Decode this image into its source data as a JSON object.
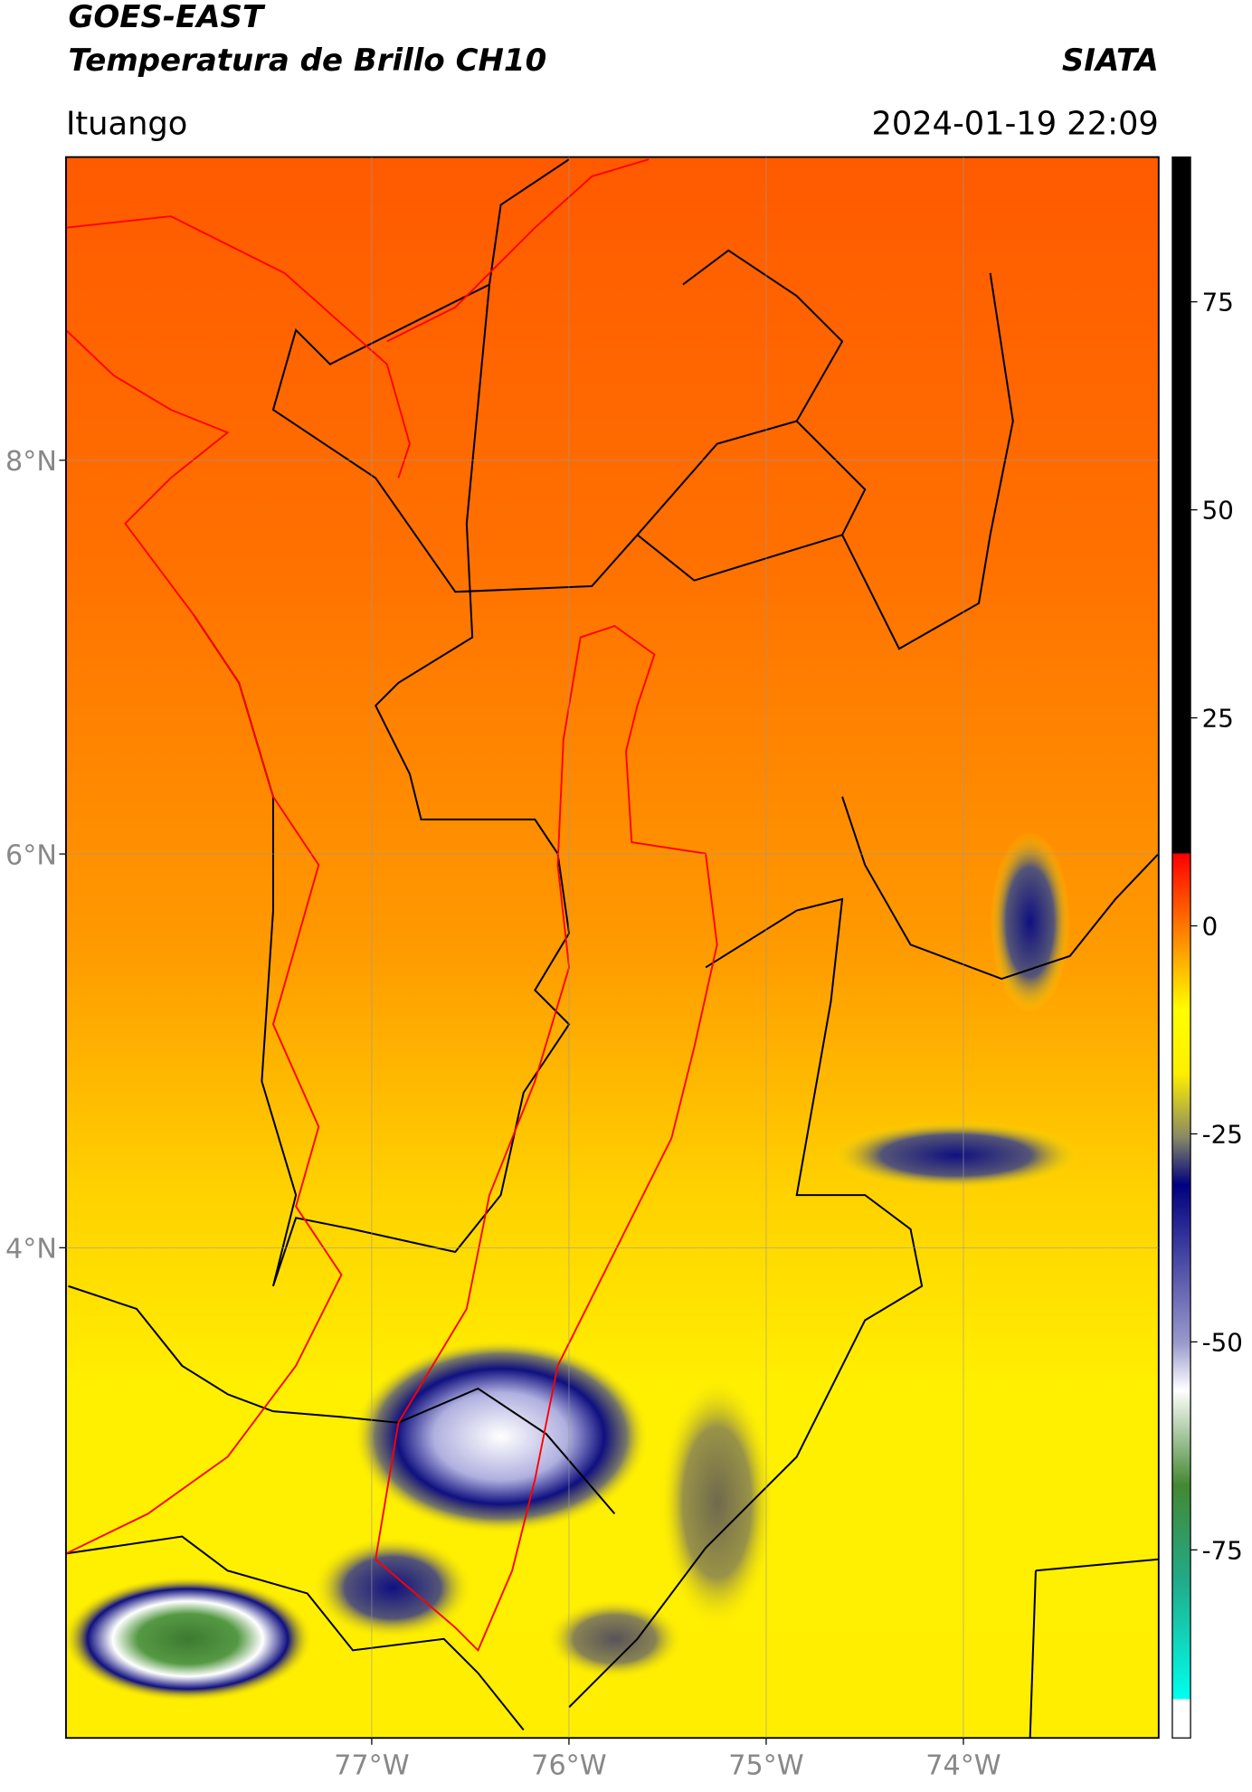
{
  "header": {
    "title_line1": "GOES-EAST",
    "title_line2": "Temperatura de Brillo CH10",
    "source": "SIATA",
    "location": "Ituango",
    "datetime": "2024-01-19 22:09"
  },
  "map": {
    "xlim": [
      -78.55,
      -73.01
    ],
    "ylim": [
      1.51,
      9.54
    ],
    "xticks": [
      {
        "value": -77,
        "label": "77°W"
      },
      {
        "value": -76,
        "label": "76°W"
      },
      {
        "value": -75,
        "label": "75°W"
      },
      {
        "value": -74,
        "label": "74°W"
      }
    ],
    "yticks": [
      {
        "value": 8,
        "label": "8°N"
      },
      {
        "value": 6,
        "label": "6°N"
      },
      {
        "value": 4,
        "label": "4°N"
      }
    ],
    "grid": true
  },
  "colorbar": {
    "lim": [
      -97.6,
      92.4
    ],
    "ticks": [
      75,
      50,
      25,
      0,
      -25,
      -50,
      -75
    ]
  }
}
